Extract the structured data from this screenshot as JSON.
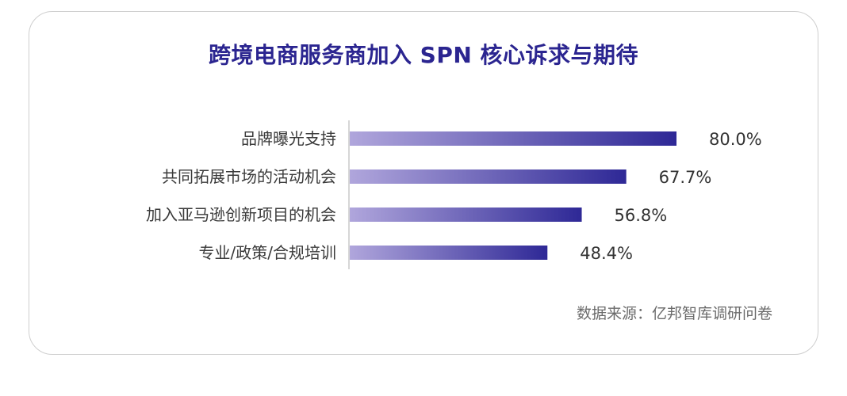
{
  "title": "跨境电商服务商加入 SPN 核心诉求与期待",
  "source": "数据来源：亿邦智库调研问卷",
  "chart_data": {
    "type": "bar",
    "orientation": "horizontal",
    "title": "跨境电商服务商加入 SPN 核心诉求与期待",
    "categories": [
      "品牌曝光支持",
      "共同拓展市场的活动机会",
      "加入亚马逊创新项目的机会",
      "专业/政策/合规培训"
    ],
    "values": [
      80.0,
      67.7,
      56.8,
      48.4
    ],
    "value_labels": [
      "80.0%",
      "67.7%",
      "56.8%",
      "48.4%"
    ],
    "unit": "%",
    "xlim": [
      0,
      100
    ],
    "grid": false,
    "bar_gradient": [
      "#b0a6dc",
      "#2e2896"
    ]
  }
}
